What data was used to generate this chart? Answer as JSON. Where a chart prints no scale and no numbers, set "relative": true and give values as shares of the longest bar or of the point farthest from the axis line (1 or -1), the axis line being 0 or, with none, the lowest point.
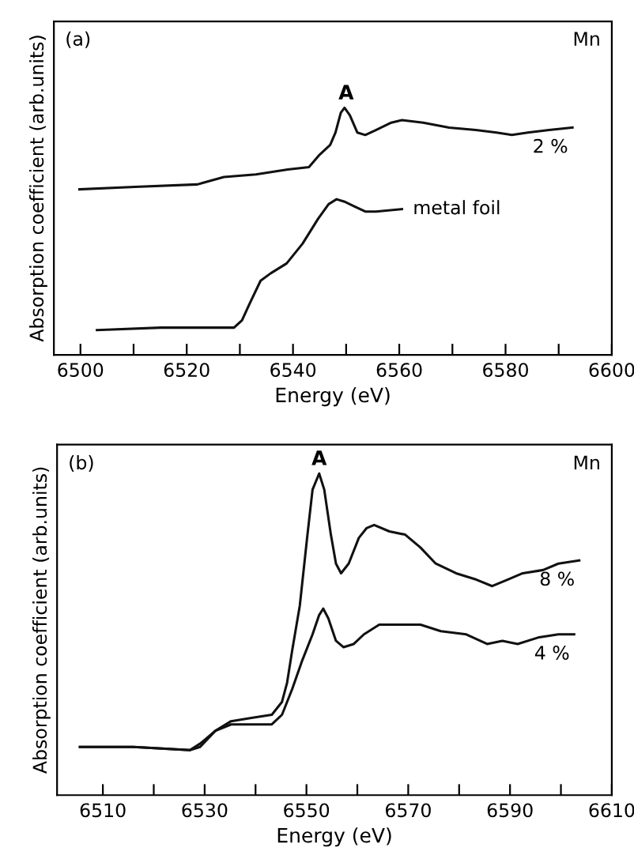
{
  "chart_data": [
    {
      "type": "line",
      "relative": true,
      "xlabel": "Energy (eV)",
      "ylabel": "Absorption coefficient (arb.units)",
      "xlim": [
        6495,
        6600
      ],
      "xticks": [
        6500,
        {
          "value": 6510,
          "label": null
        },
        6520,
        {
          "value": 6530,
          "label": null
        },
        6540,
        {
          "value": 6550,
          "label": null
        },
        6560,
        {
          "value": 6570,
          "label": null
        },
        6580,
        {
          "value": 6590,
          "label": null
        },
        6600
      ],
      "tick_labels": "x",
      "grid": false,
      "legend": false,
      "annotations": [
        "(a)",
        "Mn",
        {
          "text": "A",
          "x": 6550,
          "y": 1.0
        }
      ],
      "series": [
        {
          "name": "2 %",
          "color": "#111111",
          "x": [
            6499.8,
            6510.2,
            6522,
            6527,
            6533,
            6539,
            6543,
            6545,
            6547,
            6548,
            6549,
            6549.7,
            6550.7,
            6552.1,
            6553.6,
            6555.6,
            6558.5,
            6560.5,
            6564.5,
            6569.4,
            6574.4,
            6578.3,
            6581.2,
            6584.2,
            6588.2,
            6592.6
          ],
          "values": [
            0.67,
            0.68,
            0.69,
            0.72,
            0.73,
            0.75,
            0.76,
            0.81,
            0.85,
            0.9,
            0.98,
            1.0,
            0.97,
            0.9,
            0.89,
            0.91,
            0.94,
            0.95,
            0.94,
            0.92,
            0.91,
            0.9,
            0.89,
            0.9,
            0.91,
            0.92
          ]
        },
        {
          "name": "metal foil",
          "color": "#111111",
          "x": [
            6503.1,
            6515.1,
            6528.9,
            6530.4,
            6531.9,
            6533.9,
            6535.8,
            6538.8,
            6541.8,
            6544.7,
            6546.7,
            6548.2,
            6549.7,
            6551.6,
            6553.6,
            6555.6,
            6560.5
          ],
          "values": [
            0.1,
            0.11,
            0.11,
            0.14,
            0.21,
            0.3,
            0.33,
            0.37,
            0.45,
            0.55,
            0.61,
            0.63,
            0.62,
            0.6,
            0.58,
            0.58,
            0.59
          ]
        }
      ]
    },
    {
      "type": "line",
      "relative": true,
      "xlabel": "Energy (eV)",
      "ylabel": "Absorption coefficient (arb.units)",
      "xlim": [
        6501,
        6610
      ],
      "xticks": [
        6510,
        {
          "value": 6520,
          "label": null
        },
        6530,
        {
          "value": 6540,
          "label": null
        },
        6550,
        {
          "value": 6560,
          "label": null
        },
        6570,
        {
          "value": 6580,
          "label": null
        },
        6590,
        {
          "value": 6600,
          "label": null
        },
        6610
      ],
      "tick_labels": "x",
      "grid": false,
      "legend": false,
      "annotations": [
        "(b)",
        "Mn",
        {
          "text": "A",
          "x": 6552.5,
          "y": 1.0
        }
      ],
      "series": [
        {
          "name": "8 %",
          "color": "#111111",
          "x": [
            6505.5,
            6516.0,
            6527.1,
            6529.1,
            6532.1,
            6535.2,
            6539.2,
            6543.2,
            6545.2,
            6546.2,
            6547.2,
            6548.7,
            6550.2,
            6551.2,
            6552.5,
            6553.5,
            6554.8,
            6555.8,
            6556.8,
            6558.3,
            6560.3,
            6561.8,
            6563.3,
            6566.3,
            6569.4,
            6572.4,
            6575.4,
            6579.4,
            6583.4,
            6586.5,
            6589.5,
            6592.5,
            6596.5,
            6599.5,
            6603.6
          ],
          "values": [
            0.15,
            0.15,
            0.14,
            0.16,
            0.2,
            0.23,
            0.24,
            0.25,
            0.29,
            0.35,
            0.45,
            0.59,
            0.81,
            0.95,
            1.0,
            0.95,
            0.81,
            0.72,
            0.69,
            0.72,
            0.8,
            0.83,
            0.84,
            0.82,
            0.81,
            0.77,
            0.72,
            0.69,
            0.67,
            0.65,
            0.67,
            0.69,
            0.7,
            0.72,
            0.73
          ]
        },
        {
          "name": "4 %",
          "color": "#111111",
          "x": [
            6505.5,
            6516.0,
            6527.1,
            6529.1,
            6532.1,
            6535.2,
            6539.2,
            6543.2,
            6545.2,
            6547.2,
            6549.2,
            6551.2,
            6552.5,
            6553.3,
            6554.3,
            6555.8,
            6557.3,
            6559.3,
            6561.3,
            6564.3,
            6568.4,
            6572.4,
            6576.4,
            6581.4,
            6585.5,
            6588.5,
            6591.5,
            6595.5,
            6599.5,
            6602.6
          ],
          "values": [
            0.15,
            0.15,
            0.14,
            0.15,
            0.2,
            0.22,
            0.22,
            0.22,
            0.25,
            0.33,
            0.42,
            0.5,
            0.56,
            0.58,
            0.55,
            0.48,
            0.46,
            0.47,
            0.5,
            0.53,
            0.53,
            0.53,
            0.51,
            0.5,
            0.47,
            0.48,
            0.47,
            0.49,
            0.5,
            0.5
          ]
        }
      ]
    }
  ]
}
